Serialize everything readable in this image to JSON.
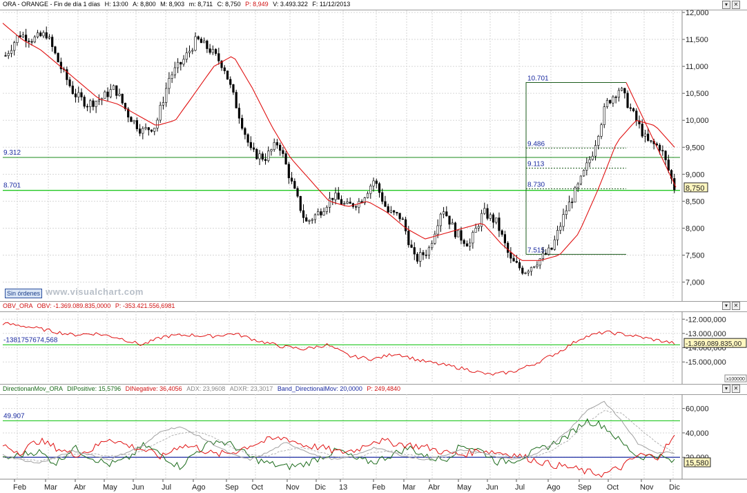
{
  "main": {
    "header": {
      "symbol": "ORA - ORANGE - Fin de día 1 días",
      "high": "H: 13:00",
      "a": "A: 8,800",
      "m": "M: 8,903",
      "low": "m: 8,711",
      "close": "C: 8,750",
      "p": "P: 8,949",
      "vol": "V: 3.493.322",
      "date": "F: 11/12/2013"
    },
    "sin_ordenes": "Sin órdenes",
    "watermark": "www.visualchart.com",
    "colors": {
      "candles": "#000000",
      "ma": "#e01010",
      "hline": "#1a8a1a",
      "hline_bright": "#22c822",
      "fib": "#1a5a1a",
      "axis_text": "#222222"
    }
  },
  "obv": {
    "header": {
      "name": "OBV_ORA",
      "field": "OBV: -1.369.089.835,0000",
      "p": "P: -353.421.556,6981"
    },
    "level_label": "-1381757674,568",
    "scale_tag": "x100000"
  },
  "dmi": {
    "header": {
      "name": "DirectionanMov_ORA",
      "dip": "DIPositive: 15,5796",
      "din": "DINegative: 36,4056",
      "adx": "ADX: 23,9608",
      "adxr": "ADXR: 23,3017",
      "band": "Band_DirectionalMov: 20,0000",
      "p": "P: 249,4840"
    },
    "level_label": "49.907"
  },
  "chart_data": [
    {
      "type": "candlestick",
      "title": "ORA - ORANGE",
      "xlabel": "",
      "ylabel": "",
      "ylim": [
        6.7,
        12.0
      ],
      "y_ticks": [
        "12,000",
        "11,500",
        "11,000",
        "10,500",
        "10,000",
        "9,500",
        "9,000",
        "8,500",
        "8,000",
        "7,500",
        "7,000"
      ],
      "x_ticks": [
        "Feb",
        "Mar",
        "Abr",
        "May",
        "Jun",
        "Jul",
        "Ago",
        "Sep",
        "Oct",
        "Nov",
        "Dic",
        "13",
        "Feb",
        "Mar",
        "Abr",
        "May",
        "Jun",
        "Jul",
        "Ago",
        "Sep",
        "Oct",
        "Nov",
        "Dic"
      ],
      "close_path": [
        11.2,
        11.6,
        11.5,
        11.6,
        11.0,
        10.5,
        10.3,
        10.4,
        10.6,
        10.1,
        9.8,
        9.9,
        10.8,
        11.1,
        11.5,
        11.3,
        11.0,
        10.2,
        9.4,
        9.3,
        9.6,
        8.8,
        8.1,
        8.3,
        8.6,
        8.4,
        8.5,
        8.9,
        8.3,
        8.2,
        7.4,
        7.6,
        8.4,
        7.9,
        7.7,
        8.3,
        8.1,
        7.4,
        7.2,
        7.4,
        7.6,
        8.3,
        8.8,
        9.4,
        10.3,
        10.6,
        10.1,
        9.6,
        9.5,
        8.75
      ],
      "ma_path": [
        11.8,
        11.5,
        11.3,
        11.0,
        10.7,
        10.4,
        10.3,
        10.1,
        9.9,
        10.0,
        10.5,
        11.0,
        11.2,
        10.6,
        9.9,
        9.3,
        8.9,
        8.5,
        8.4,
        8.5,
        8.3,
        8.0,
        7.8,
        7.9,
        8.0,
        8.1,
        7.7,
        7.4,
        7.4,
        7.5,
        7.9,
        8.7,
        9.6,
        10.0,
        9.9,
        9.5
      ],
      "last_value": "8,750",
      "annotations": {
        "hlines": [
          {
            "label": "9.312",
            "value": 9.312
          },
          {
            "label": "8.701",
            "value": 8.701
          }
        ],
        "fib_high": "10.701",
        "fib_levels": [
          {
            "label": "9.486",
            "value": 9.486
          },
          {
            "label": "9.113",
            "value": 9.113
          },
          {
            "label": "8.730",
            "value": 8.73
          }
        ],
        "fib_low": "7.515"
      }
    },
    {
      "type": "line",
      "title": "OBV_ORA",
      "series": [
        {
          "name": "OBV",
          "values": [
            -12.3,
            -12.5,
            -12.8,
            -13.1,
            -13.0,
            -13.3,
            -13.8,
            -13.2,
            -13.1,
            -13.2,
            -13.0,
            -13.5,
            -13.9,
            -14.1,
            -13.8,
            -14.6,
            -14.8,
            -14.4,
            -14.9,
            -15.2,
            -15.5,
            -15.9,
            -15.7,
            -15.1,
            -14.3,
            -13.3,
            -12.9,
            -13.1,
            -13.4,
            -13.69
          ]
        }
      ],
      "ylim": [
        -16.2,
        -11.6
      ],
      "y_ticks": [
        "-12.000,000",
        "-13.000,000",
        "-14.000,000",
        "-15.000,000"
      ],
      "last_value": "-1.369.089.835,00"
    },
    {
      "type": "line",
      "title": "DirectionanMov_ORA",
      "ylim": [
        2,
        70
      ],
      "y_ticks": [
        "60,000",
        "40,000",
        "20,000"
      ],
      "band_value": 20,
      "level_value": 49.907,
      "series": [
        {
          "name": "DIPositive",
          "color": "#1a6a1a",
          "values": [
            18,
            22,
            25,
            15,
            28,
            20,
            14,
            18,
            30,
            22,
            12,
            25,
            34,
            30,
            20,
            15,
            12,
            14,
            20,
            26,
            18,
            16,
            22,
            28,
            20,
            18,
            30,
            26,
            16,
            18,
            24,
            30,
            38,
            50,
            46,
            32,
            20,
            22,
            15.58
          ]
        },
        {
          "name": "DINegative",
          "color": "#e01010",
          "values": [
            30,
            24,
            34,
            28,
            22,
            26,
            36,
            30,
            26,
            20,
            30,
            28,
            22,
            24,
            30,
            34,
            36,
            30,
            28,
            24,
            26,
            34,
            32,
            30,
            28,
            24,
            22,
            26,
            24,
            22,
            18,
            14,
            12,
            8,
            6,
            12,
            22,
            20,
            36.4
          ]
        },
        {
          "name": "ADX",
          "color": "#a0a0a0",
          "values": [
            22,
            18,
            15,
            20,
            25,
            22,
            18,
            24,
            30,
            42,
            45,
            38,
            30,
            22,
            18,
            24,
            32,
            26,
            20,
            18,
            22,
            28,
            24,
            20,
            18,
            22,
            26,
            24,
            20,
            18,
            22,
            30,
            42,
            58,
            66,
            50,
            30,
            24,
            23.96
          ]
        },
        {
          "name": "ADXR",
          "color": "#b0b0b0",
          "values": [
            20,
            19,
            17,
            19,
            22,
            23,
            21,
            22,
            26,
            34,
            40,
            41,
            36,
            28,
            22,
            21,
            26,
            28,
            24,
            20,
            20,
            24,
            25,
            22,
            20,
            20,
            23,
            24,
            22,
            20,
            20,
            25,
            34,
            48,
            58,
            56,
            44,
            32,
            23.3
          ]
        }
      ],
      "last_value": "15,580"
    }
  ]
}
